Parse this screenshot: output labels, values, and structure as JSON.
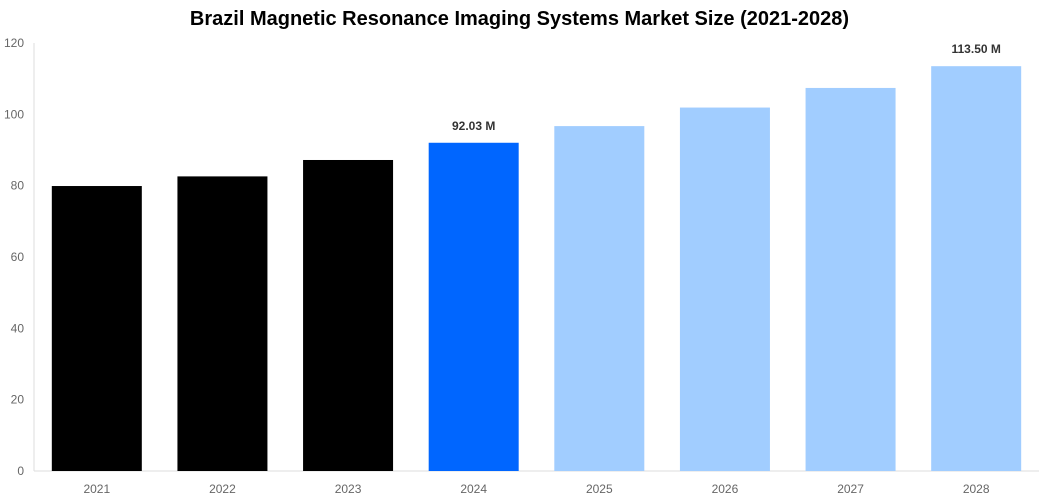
{
  "chart_data": {
    "type": "bar",
    "title": "Brazil Magnetic Resonance Imaging Systems Market Size (2021-2028)",
    "xlabel": "",
    "ylabel": "",
    "categories": [
      "2021",
      "2022",
      "2023",
      "2024",
      "2025",
      "2026",
      "2027",
      "2028"
    ],
    "values": [
      79.9,
      82.6,
      87.2,
      92.03,
      96.7,
      101.9,
      107.4,
      113.5
    ],
    "colors": [
      "#000000",
      "#000000",
      "#000000",
      "#0066FF",
      "#A1CDFF",
      "#A1CDFF",
      "#A1CDFF",
      "#A1CDFF"
    ],
    "data_labels": {
      "3": "92.03 M",
      "7": "113.50 M"
    },
    "ylim": [
      0,
      120
    ],
    "yticks": [
      0,
      20,
      40,
      60,
      80,
      100,
      120
    ],
    "grid": false,
    "legend": "none"
  }
}
